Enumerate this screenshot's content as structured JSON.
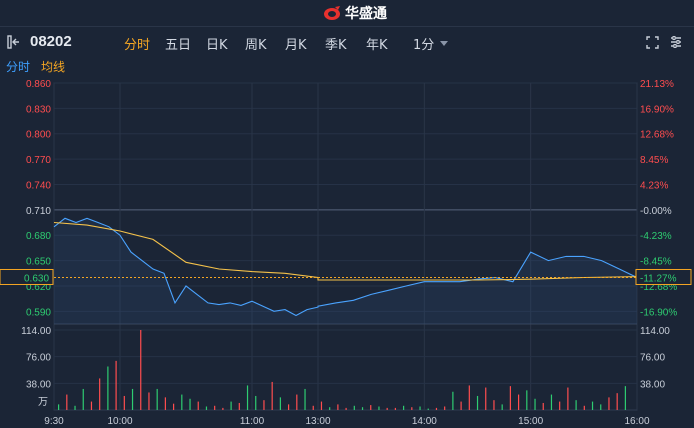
{
  "app": {
    "brand_name": "华盛通"
  },
  "stock": {
    "code": "08202"
  },
  "periods": [
    {
      "label": "分时",
      "active": true
    },
    {
      "label": "五日",
      "active": false
    },
    {
      "label": "日K",
      "active": false
    },
    {
      "label": "周K",
      "active": false
    },
    {
      "label": "月K",
      "active": false
    },
    {
      "label": "季K",
      "active": false
    },
    {
      "label": "年K",
      "active": false
    },
    {
      "label": "1分",
      "active": false
    }
  ],
  "subtabs": [
    {
      "label": "分时",
      "color": "#3ea0ff"
    },
    {
      "label": "均线",
      "color": "#f5a623"
    }
  ],
  "colors": {
    "up": "#ff4d4f",
    "down": "#2ecc71",
    "neutral": "#c8ced8",
    "price_line": "#4aa3ff",
    "avg_line": "#f5c24a",
    "accent": "#f5a623"
  },
  "icons": {
    "side_toggle": "panel-toggle-icon",
    "fullscreen": "fullscreen-icon",
    "settings": "settings-icon",
    "logo": "brand-logo-icon"
  },
  "chart_data": {
    "type": "line",
    "prev_close": 0.71,
    "current_price": "0.630",
    "current_change": "-11.27%",
    "price_axis": [
      "0.860",
      "0.830",
      "0.800",
      "0.770",
      "0.740",
      "0.710",
      "0.680",
      "0.650",
      "0.620",
      "0.590"
    ],
    "pct_axis": [
      "21.13%",
      "16.90%",
      "12.68%",
      "8.45%",
      "4.23%",
      "-0.00%",
      "-4.23%",
      "-8.45%",
      "-12.68%",
      "-16.90%"
    ],
    "price_ylim": [
      0.575,
      0.86
    ],
    "volume_axis": [
      "114.00",
      "76.00",
      "38.00"
    ],
    "volume_unit": "万",
    "volume_ylim": [
      0,
      114
    ],
    "time_labels": [
      "9:30",
      "10:00",
      "11:00",
      "13:00",
      "14:00",
      "15:00",
      "16:00"
    ],
    "series": [
      {
        "name": "分时",
        "x": [
          "09:30",
          "09:35",
          "09:40",
          "09:45",
          "09:50",
          "09:55",
          "10:00",
          "10:05",
          "10:10",
          "10:15",
          "10:20",
          "10:25",
          "10:30",
          "10:35",
          "10:40",
          "10:45",
          "10:50",
          "10:55",
          "11:00",
          "11:05",
          "11:10",
          "11:15",
          "11:20",
          "11:25",
          "11:30",
          "13:00",
          "13:10",
          "13:20",
          "13:30",
          "13:40",
          "13:50",
          "14:00",
          "14:10",
          "14:20",
          "14:30",
          "14:40",
          "14:50",
          "15:00",
          "15:10",
          "15:20",
          "15:30",
          "15:40",
          "15:50",
          "16:00"
        ],
        "values": [
          0.69,
          0.7,
          0.695,
          0.7,
          0.695,
          0.69,
          0.68,
          0.66,
          0.65,
          0.64,
          0.635,
          0.6,
          0.62,
          0.61,
          0.6,
          0.598,
          0.6,
          0.597,
          0.602,
          0.596,
          0.59,
          0.592,
          0.585,
          0.592,
          0.595,
          0.596,
          0.6,
          0.603,
          0.61,
          0.615,
          0.62,
          0.625,
          0.625,
          0.625,
          0.628,
          0.63,
          0.625,
          0.66,
          0.65,
          0.655,
          0.655,
          0.65,
          0.64,
          0.63
        ]
      },
      {
        "name": "均线",
        "x": [
          "09:30",
          "09:45",
          "10:00",
          "10:15",
          "10:30",
          "10:45",
          "11:00",
          "11:15",
          "11:30",
          "13:00",
          "13:30",
          "14:00",
          "14:30",
          "15:00",
          "15:30",
          "16:00"
        ],
        "values": [
          0.695,
          0.692,
          0.685,
          0.675,
          0.648,
          0.64,
          0.637,
          0.635,
          0.63,
          0.627,
          0.627,
          0.627,
          0.627,
          0.628,
          0.63,
          0.631
        ]
      }
    ],
    "volume": [
      8,
      22,
      6,
      30,
      12,
      45,
      62,
      70,
      20,
      30,
      114,
      25,
      30,
      18,
      9,
      22,
      16,
      12,
      5,
      6,
      3,
      12,
      10,
      35,
      20,
      14,
      40,
      18,
      8,
      22,
      30,
      6,
      12,
      4,
      8,
      3,
      6,
      4,
      7,
      5,
      3,
      3,
      6,
      4,
      5,
      2,
      3,
      5,
      26,
      12,
      35,
      20,
      32,
      14,
      8,
      34,
      22,
      28,
      16,
      10,
      22,
      12,
      32,
      14,
      6,
      12,
      8,
      18,
      24,
      34
    ]
  }
}
